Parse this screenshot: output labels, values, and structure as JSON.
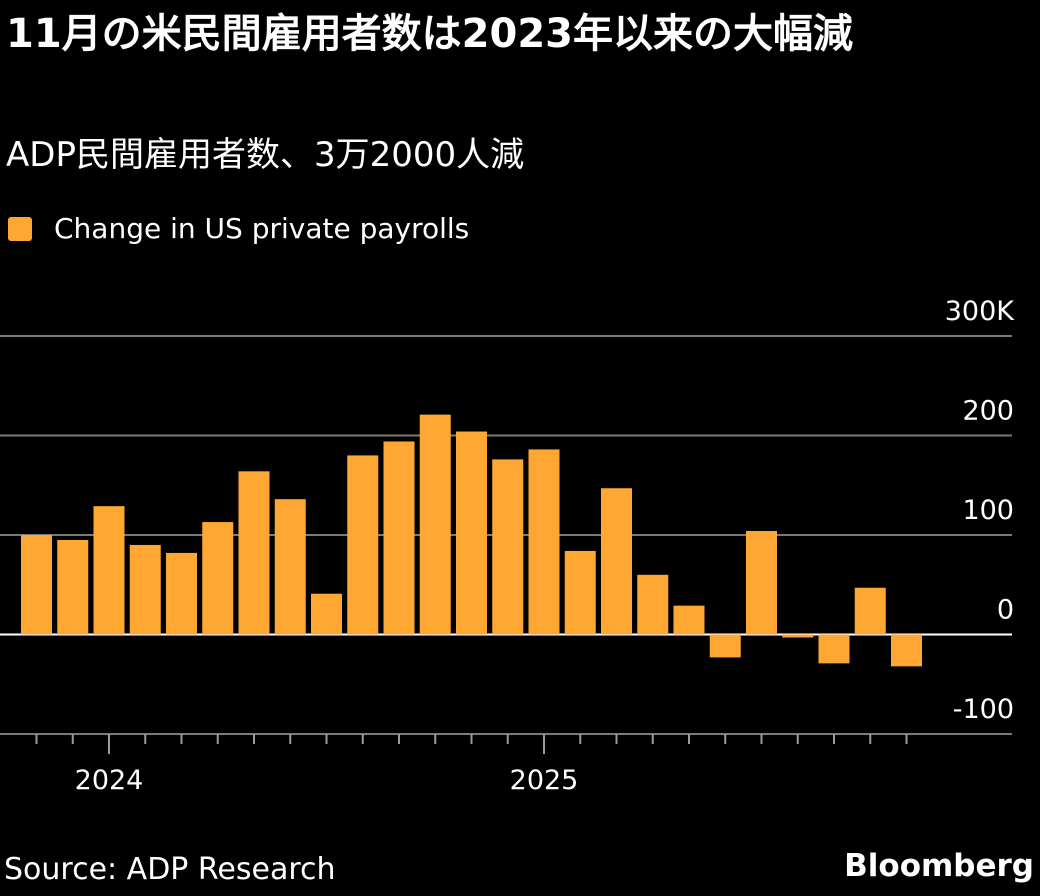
{
  "header": {
    "title": "11月の米民間雇用者数は2023年以来の大幅減",
    "subtitle": "ADP民間雇用者数、3万2000人減"
  },
  "legend": {
    "label": "Change in US private payrolls",
    "color": "#ffa733"
  },
  "footer": {
    "source": "Source: ADP Research",
    "brand": "Bloomberg"
  },
  "chart_data": {
    "type": "bar",
    "title": "11月の米民間雇用者数は2023年以来の大幅減",
    "subtitle": "ADP民間雇用者数、3万2000人減",
    "xlabel": "",
    "ylabel": "",
    "series": [
      {
        "name": "Change in US private payrolls",
        "color": "#ffa733",
        "x": [
          "2023-11",
          "2023-12",
          "2024-01",
          "2024-02",
          "2024-03",
          "2024-04",
          "2024-05",
          "2024-06",
          "2024-07",
          "2024-08",
          "2024-09",
          "2024-10",
          "2024-11",
          "2024-12",
          "2025-01",
          "2025-02",
          "2025-03",
          "2025-04",
          "2025-05",
          "2025-06",
          "2025-07",
          "2025-08",
          "2025-09",
          "2025-10",
          "2025-11"
        ],
        "values": [
          100,
          95,
          129,
          90,
          82,
          113,
          164,
          136,
          41,
          180,
          194,
          221,
          204,
          176,
          186,
          84,
          147,
          60,
          29,
          -23,
          104,
          -3,
          -29,
          47,
          -32
        ]
      }
    ],
    "ylim": [
      -100,
      300
    ],
    "y_ticks": [
      300,
      200,
      100,
      0,
      -100
    ],
    "y_tick_labels": [
      "300K",
      "200",
      "100",
      "0",
      "-100"
    ],
    "x_tick_labels": [
      {
        "label": "2024",
        "x": "2024-01"
      },
      {
        "label": "2025",
        "x": "2025-01"
      }
    ],
    "grid": true,
    "legend_position": "top-left",
    "axis_side": "right"
  }
}
